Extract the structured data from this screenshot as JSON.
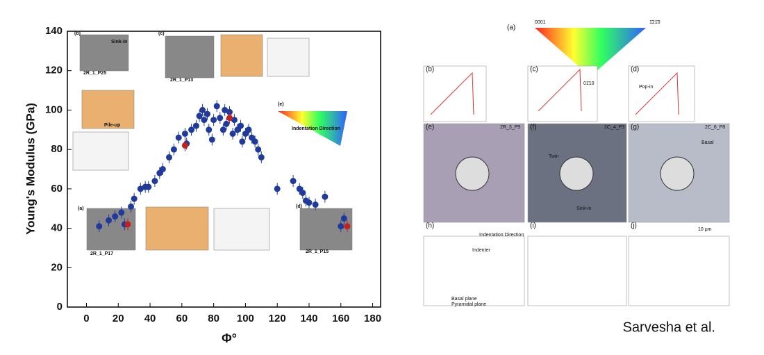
{
  "chart_data": {
    "type": "scatter",
    "xlabel": "Φ°",
    "ylabel": "Young's Modulus (GPa)",
    "xlim": [
      -12,
      185
    ],
    "ylim": [
      0,
      140
    ],
    "xticks": [
      0,
      20,
      40,
      60,
      80,
      100,
      120,
      140,
      160,
      180
    ],
    "yticks": [
      0,
      20,
      40,
      60,
      80,
      100,
      120,
      140
    ],
    "error": 3,
    "series": [
      {
        "color": "#1f3a9a",
        "x": [
          8,
          14,
          18,
          22,
          24,
          28,
          30,
          34,
          37,
          39,
          43,
          46,
          48,
          52,
          55,
          58,
          62,
          63,
          66,
          69,
          71,
          73,
          74,
          76,
          77,
          79,
          80,
          82,
          84,
          86,
          87,
          88,
          90,
          92,
          93,
          95,
          97,
          98,
          100,
          102,
          104,
          106,
          108,
          110,
          120,
          130,
          134,
          136,
          138,
          140,
          144,
          150,
          160,
          162
        ],
        "values": [
          41,
          44,
          46,
          48,
          42,
          51,
          55,
          60,
          61,
          61,
          64,
          68,
          70,
          76,
          80,
          86,
          88,
          83,
          90,
          92,
          97,
          100,
          95,
          98,
          90,
          85,
          95,
          102,
          96,
          90,
          100,
          93,
          99,
          88,
          95,
          90,
          92,
          84,
          88,
          90,
          86,
          84,
          80,
          76,
          60,
          64,
          60,
          58,
          54,
          53,
          52,
          56,
          41,
          45
        ]
      },
      {
        "color": "#c0221e",
        "x": [
          26,
          62,
          90,
          164
        ],
        "values": [
          42,
          82,
          96,
          41
        ]
      }
    ],
    "annotations": [
      "(a)",
      "(b)",
      "(c)",
      "(d)",
      "(e)",
      "2R_1_P17",
      "2R_1_P25",
      "2R_1_P13",
      "2R_1_P15",
      "Pile-up",
      "Sink-in",
      "Indentation Direction"
    ]
  },
  "figure": {
    "panels": [
      "(a)",
      "(b)",
      "(c)",
      "(d)",
      "(e)",
      "(f)",
      "(g)",
      "(h)",
      "(i)",
      "(j)"
    ],
    "texts": [
      "0001",
      "1̄21̄0",
      "01̄10",
      "2R_3_P9",
      "2C_4_P3",
      "2C_6_P8",
      "Pop-in",
      "Twin",
      "Sink-in",
      "Basal",
      "10 μm",
      "Indenter",
      "Indentation Direction",
      "Basal plane",
      "Pyramidal plane"
    ],
    "credit": "Sarvesha et al."
  }
}
